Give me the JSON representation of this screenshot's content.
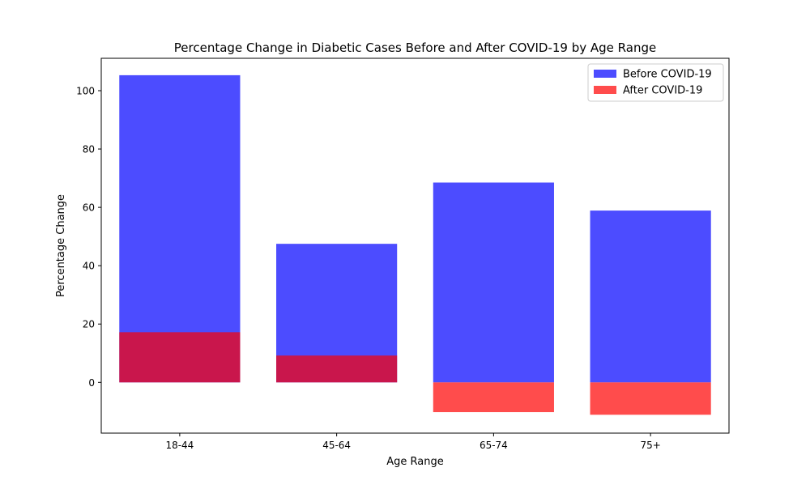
{
  "chart_data": {
    "type": "bar",
    "title": "Percentage Change in Diabetic Cases Before and After COVID-19 by Age Range",
    "xlabel": "Age Range",
    "ylabel": "Percentage Change",
    "categories": [
      "18-44",
      "45-64",
      "65-74",
      "75+"
    ],
    "series": [
      {
        "name": "Before COVID-19",
        "values": [
          105.3,
          47.5,
          68.5,
          58.9
        ],
        "color": "#0000ff",
        "opacity": 0.7
      },
      {
        "name": "After COVID-19",
        "values": [
          17.2,
          9.2,
          -10.2,
          -11.1
        ],
        "color": "#ff0000",
        "opacity": 0.7
      }
    ],
    "ylim": [
      -17.4,
      111.1
    ],
    "yticks": [
      0,
      20,
      40,
      60,
      80,
      100
    ],
    "legend_position": "top-right",
    "grid": false
  }
}
